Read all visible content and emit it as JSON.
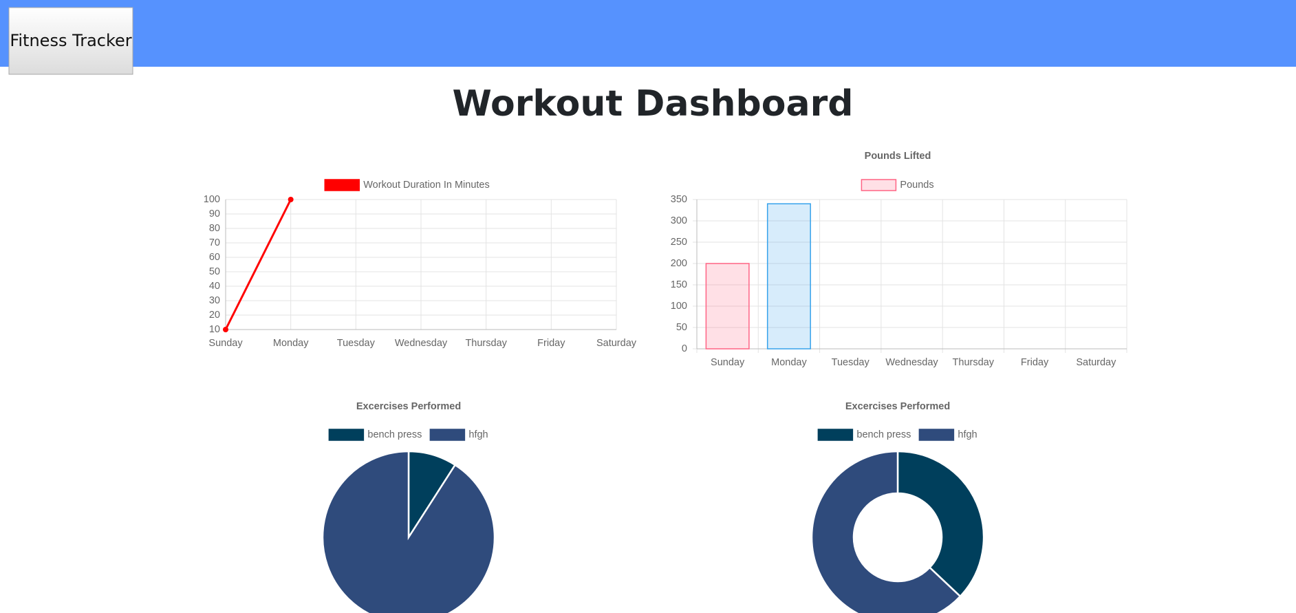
{
  "header": {
    "brand": "Fitness Tracker"
  },
  "title": "Workout Dashboard",
  "chart_data": [
    {
      "type": "line",
      "categories": [
        "Sunday",
        "Monday",
        "Tuesday",
        "Wednesday",
        "Thursday",
        "Friday",
        "Saturday"
      ],
      "series": [
        {
          "name": "Workout Duration In Minutes",
          "color": "#ff0000",
          "values": [
            10,
            100,
            null,
            null,
            null,
            null,
            null
          ]
        }
      ],
      "ylim": [
        10,
        100
      ],
      "yticks": [
        10,
        20,
        30,
        40,
        50,
        60,
        70,
        80,
        90,
        100
      ],
      "grid": true
    },
    {
      "type": "bar",
      "title": "Pounds Lifted",
      "categories": [
        "Sunday",
        "Monday",
        "Tuesday",
        "Wednesday",
        "Thursday",
        "Friday",
        "Saturday"
      ],
      "series": [
        {
          "name": "Pounds",
          "color": "#ff6384",
          "values": [
            200,
            340,
            null,
            null,
            null,
            null,
            null
          ]
        }
      ],
      "bar_colors": [
        "#ff6384",
        "#36a2eb"
      ],
      "ylim": [
        0,
        350
      ],
      "yticks": [
        0,
        50,
        100,
        150,
        200,
        250,
        300,
        350
      ],
      "grid": true
    },
    {
      "type": "pie",
      "title": "Excercises Performed",
      "categories": [
        "bench press",
        "hfgh"
      ],
      "values": [
        10,
        100
      ],
      "colors": [
        "#003f5c",
        "#2f4b7c"
      ]
    },
    {
      "type": "doughnut",
      "title": "Excercises Performed",
      "categories": [
        "bench press",
        "hfgh"
      ],
      "values": [
        200,
        340
      ],
      "colors": [
        "#003f5c",
        "#2f4b7c"
      ]
    }
  ]
}
